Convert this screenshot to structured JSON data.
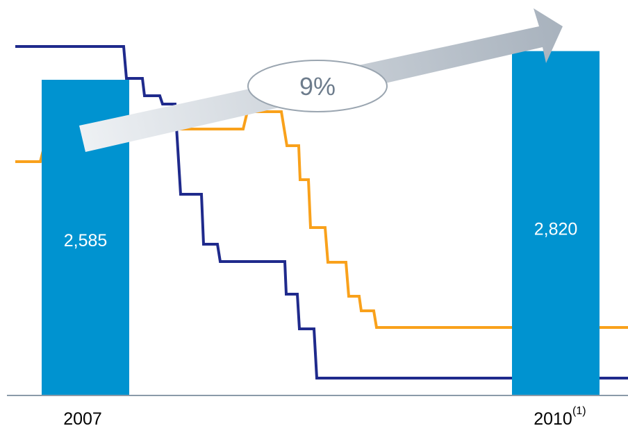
{
  "chart_data": {
    "type": "bar",
    "title": "",
    "xlabel": "",
    "ylabel": "",
    "categories": [
      "2007",
      "2010"
    ],
    "category_footnote": [
      "",
      "(1)"
    ],
    "values": [
      2585,
      2820
    ],
    "value_labels": [
      "2,585",
      "2,820"
    ],
    "growth_annotation": "9%",
    "colors": {
      "bar": "#0093d0",
      "navy_line": "#1f2a8c",
      "orange_line": "#f9a11b",
      "axis": "#8a9aa8",
      "arrow_light": "#eef1f4",
      "arrow_dark": "#a9b3be",
      "ellipse_stroke": "#9aa5b0"
    },
    "background_lines": [
      {
        "name": "",
        "color": "#1f2a8c"
      },
      {
        "name": "",
        "color": "#f9a11b"
      }
    ]
  }
}
